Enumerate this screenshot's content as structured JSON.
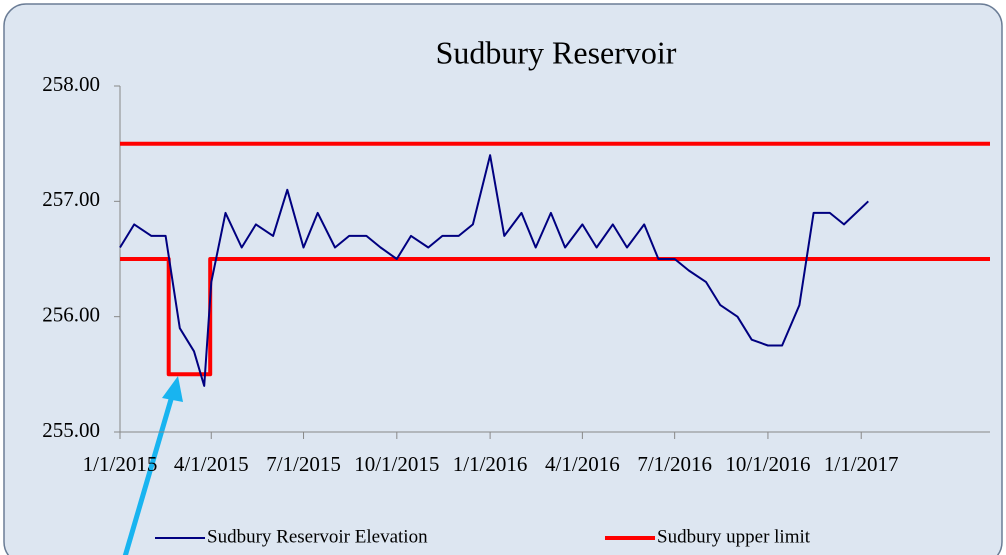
{
  "chart_data": {
    "type": "line",
    "title": "Sudbury Reservoir",
    "xlim": [
      "1/1/2015",
      "5/8/2017"
    ],
    "xticks": [
      "1/1/2015",
      "4/1/2015",
      "7/1/2015",
      "10/1/2015",
      "1/1/2016",
      "4/1/2016",
      "7/1/2016",
      "10/1/2016",
      "1/1/2017"
    ],
    "ylim": [
      255,
      258
    ],
    "yticks": [
      {
        "value": 255,
        "label": "255.00"
      },
      {
        "value": 256,
        "label": "256.00"
      },
      {
        "value": 257,
        "label": "257.00"
      },
      {
        "value": 258,
        "label": "258.00"
      }
    ],
    "series": [
      {
        "name": "Sudbury Reservoir Elevation",
        "color": "#000080",
        "x": [
          "1/1/2015",
          "1/15/2015",
          "2/1/2015",
          "2/15/2015",
          "3/1/2015",
          "3/15/2015",
          "3/25/2015",
          "4/1/2015",
          "4/15/2015",
          "5/1/2015",
          "5/15/2015",
          "6/1/2015",
          "6/15/2015",
          "7/1/2015",
          "7/15/2015",
          "8/1/2015",
          "8/15/2015",
          "9/1/2015",
          "9/15/2015",
          "10/1/2015",
          "10/15/2015",
          "11/1/2015",
          "11/15/2015",
          "12/1/2015",
          "12/15/2015",
          "1/1/2016",
          "1/15/2016",
          "2/1/2016",
          "2/15/2016",
          "3/1/2016",
          "3/15/2016",
          "4/1/2016",
          "4/15/2016",
          "5/1/2016",
          "5/15/2016",
          "6/1/2016",
          "6/15/2016",
          "7/1/2016",
          "7/15/2016",
          "8/1/2016",
          "8/15/2016",
          "9/1/2016",
          "9/15/2016",
          "10/1/2016",
          "10/15/2016",
          "11/1/2016",
          "11/15/2016",
          "12/1/2016",
          "12/15/2016",
          "1/8/2017"
        ],
        "values": [
          256.6,
          256.8,
          256.7,
          256.7,
          255.9,
          255.7,
          255.4,
          256.3,
          256.9,
          256.6,
          256.8,
          256.7,
          257.1,
          256.6,
          256.9,
          256.6,
          256.7,
          256.7,
          256.6,
          256.5,
          256.7,
          256.6,
          256.7,
          256.7,
          256.8,
          257.4,
          256.7,
          256.9,
          256.6,
          256.9,
          256.6,
          256.8,
          256.6,
          256.8,
          256.6,
          256.8,
          256.5,
          256.5,
          256.4,
          256.3,
          256.1,
          256.0,
          255.8,
          255.75,
          255.75,
          256.1,
          256.9,
          256.9,
          256.8,
          257.0
        ]
      },
      {
        "name": "Sudbury upper limit",
        "color": "#ff0000",
        "x": [
          "1/1/2015",
          "5/8/2017",
          null,
          "1/1/2015",
          "2/18/2015",
          "2/18/2015",
          "3/31/2015",
          "3/31/2015",
          "5/8/2017"
        ],
        "values": [
          257.5,
          257.5,
          null,
          256.5,
          256.5,
          255.5,
          255.5,
          256.5,
          256.5
        ]
      }
    ]
  }
}
